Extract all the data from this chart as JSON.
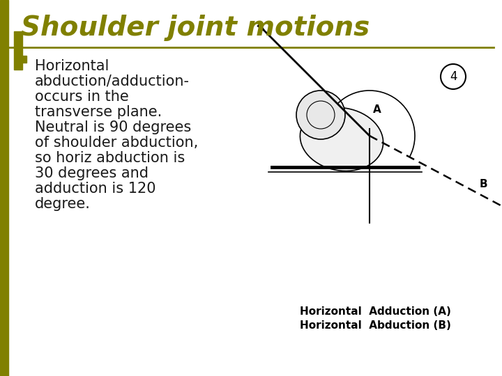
{
  "title": "Shoulder joint motions",
  "title_color": "#808000",
  "title_fontsize": 28,
  "separator_line_color": "#808000",
  "bullet_char": "□",
  "bullet_color": "#808000",
  "text_color": "#1a1a1a",
  "text_fontsize": 15,
  "body_text": "Horizontal\nabduction/adduction-\noccurs in the\ntransverse plane.\nNeutral is 90 degrees\nof shoulder abduction,\nso horiz abduction is\n30 degrees and\nadduction is 120\ndegree.",
  "image_caption_line1": "Horizontal  Adduction (A)",
  "image_caption_line2": "Horizontal  Abduction (B)",
  "background_color": "#ffffff",
  "left_accent_color": "#808000",
  "figure_number": "4"
}
